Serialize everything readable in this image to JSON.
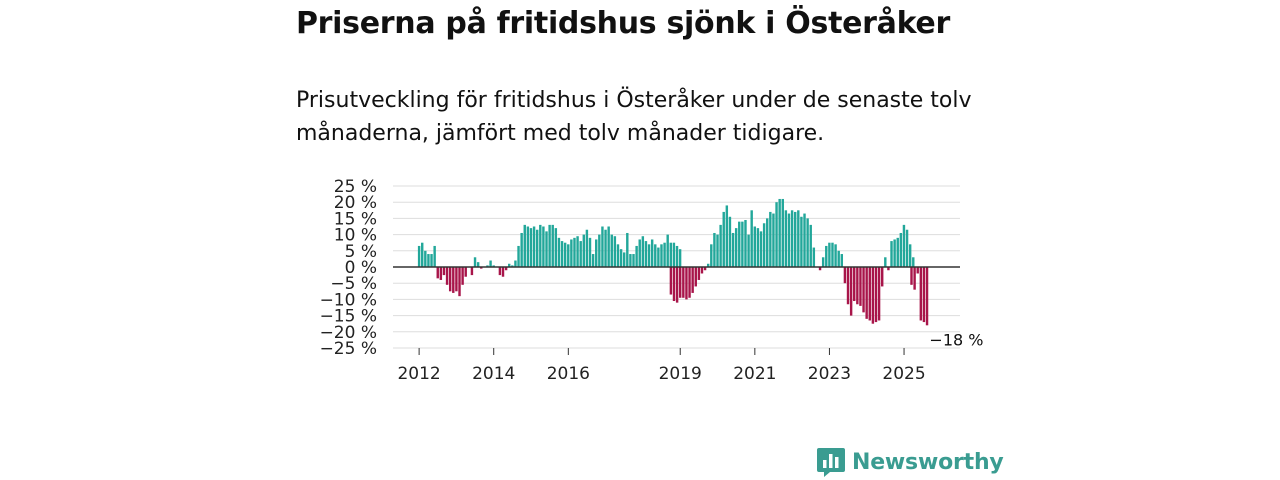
{
  "header": {
    "title": "Priserna på fritidshus sjönk i Österåker",
    "subtitle": "Prisutveckling för fritidshus i Österåker under de senaste tolv månaderna, jämfört med tolv månader tidigare."
  },
  "brand": {
    "name": "Newsworthy",
    "logo_icon": "bar-chart-speech-bubble-icon"
  },
  "colors": {
    "positive": "#22a79a",
    "negative": "#a8154a",
    "grid": "#dddddd",
    "zero": "#333333",
    "brand": "#3a9c91"
  },
  "chart_data": {
    "type": "bar",
    "title": "Priserna på fritidshus sjönk i Österåker",
    "subtitle": "Prisutveckling för fritidshus i Österåker under de senaste tolv månaderna, jämfört med tolv månader tidigare.",
    "xlabel": "",
    "ylabel": "",
    "unit": "%",
    "ylim": [
      -25,
      25
    ],
    "yticks": [
      25,
      20,
      15,
      10,
      5,
      0,
      -5,
      -10,
      -15,
      -20,
      -25
    ],
    "ytick_labels": [
      "25 %",
      "20 %",
      "15 %",
      "10 %",
      "5 %",
      "0 %",
      "−5 %",
      "−10 %",
      "−15 %",
      "−20 %",
      "−25 %"
    ],
    "xticks": [
      {
        "label": "2012",
        "x": 2012.0
      },
      {
        "label": "2014",
        "x": 2014.0
      },
      {
        "label": "2016",
        "x": 2016.0
      },
      {
        "label": "2019",
        "x": 2019.0
      },
      {
        "label": "2021",
        "x": 2021.0
      },
      {
        "label": "2023",
        "x": 2023.0
      },
      {
        "label": "2025",
        "x": 2025.0
      }
    ],
    "x_range": [
      2011.3,
      2026.5
    ],
    "series": [
      {
        "name": "Prisutveckling",
        "segments": [
          {
            "start": 2012.0,
            "step": 0.0833,
            "values": [
              6.5,
              7.5,
              5,
              4,
              4,
              6.5,
              -3.5,
              -4,
              -2.5,
              -5.5,
              -7.5,
              -8,
              -7.5,
              -9,
              -5.5,
              -3,
              0,
              -2.5,
              3,
              1.5,
              -0.5,
              0,
              0.5,
              2,
              0.5,
              0,
              -2.5,
              -3,
              -1,
              1,
              0.5,
              2,
              6.5,
              10.5,
              13,
              12.5,
              12,
              12.5,
              11.5,
              13,
              12.5,
              11,
              13,
              13,
              12,
              9,
              8,
              7.5,
              7,
              8.5,
              9,
              9.5,
              8,
              10,
              11.5,
              9,
              4,
              8.5,
              10,
              12.5,
              11.5,
              12.5,
              10,
              9.5,
              7,
              5.5,
              4.5,
              10.5,
              4,
              4,
              6.5,
              8.5,
              9.5,
              8,
              7,
              8.5,
              7,
              6,
              7,
              7.5,
              10,
              7.5,
              7.5,
              6.5,
              5.5
            ]
          },
          {
            "start": 2018.75,
            "step": 0.0833,
            "values": [
              -8.5,
              -10.5,
              -11,
              -9.5,
              -9.5,
              -10,
              -9.5,
              -8,
              -6,
              -4,
              -2,
              -1,
              1,
              7,
              10.5,
              10,
              13,
              17,
              19,
              15.5,
              10.5,
              12,
              14,
              14,
              14.5,
              10,
              17.5,
              12.5,
              12,
              11,
              13.5,
              15,
              17,
              16.5,
              20,
              21,
              21,
              17.5,
              16.5,
              17.5,
              17,
              17.5,
              15.5,
              16.5,
              15,
              13,
              6,
              0,
              -1,
              3,
              6.5,
              7.5,
              7.5,
              7,
              5,
              4,
              -5,
              -11.5,
              -15,
              -10.5,
              -11.5,
              -12,
              -14,
              -16,
              -16.5,
              -17.5,
              -17,
              -16.5,
              -6,
              3,
              -1,
              8,
              8.5,
              9,
              10.5,
              13,
              11.5,
              7,
              3
            ]
          },
          {
            "start": 2025.2,
            "step": 0.0833,
            "values": [
              -5.5,
              -7,
              -2,
              -16.5,
              -17,
              -18
            ]
          }
        ]
      }
    ],
    "annotations": [
      {
        "text": "−18 %",
        "x": 2025.6,
        "y": -18
      }
    ]
  }
}
